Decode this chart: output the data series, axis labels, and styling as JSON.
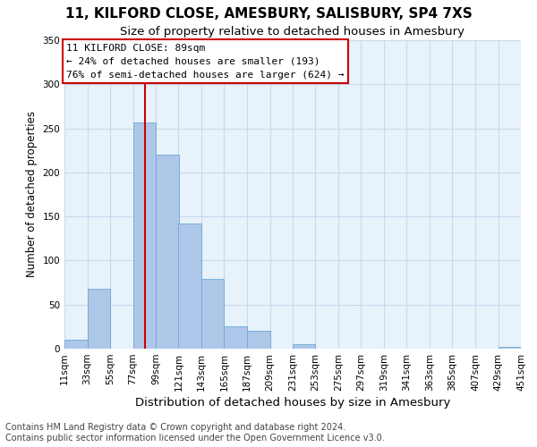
{
  "title": "11, KILFORD CLOSE, AMESBURY, SALISBURY, SP4 7XS",
  "subtitle": "Size of property relative to detached houses in Amesbury",
  "xlabel": "Distribution of detached houses by size in Amesbury",
  "ylabel": "Number of detached properties",
  "bin_edges": [
    11,
    33,
    55,
    77,
    99,
    121,
    143,
    165,
    187,
    209,
    231,
    253,
    275,
    297,
    319,
    341,
    363,
    385,
    407,
    429,
    451
  ],
  "bar_heights": [
    10,
    68,
    0,
    257,
    220,
    142,
    79,
    25,
    20,
    0,
    5,
    0,
    0,
    0,
    0,
    0,
    0,
    0,
    0,
    2
  ],
  "bar_color": "#aec6e8",
  "bar_edgecolor": "#6aaad4",
  "vline_x": 89,
  "vline_color": "#cc0000",
  "annotation_title": "11 KILFORD CLOSE: 89sqm",
  "annotation_line1": "← 24% of detached houses are smaller (193)",
  "annotation_line2": "76% of semi-detached houses are larger (624) →",
  "annotation_box_edgecolor": "#cc0000",
  "ylim": [
    0,
    350
  ],
  "yticks": [
    0,
    50,
    100,
    150,
    200,
    250,
    300,
    350
  ],
  "tick_labels": [
    "11sqm",
    "33sqm",
    "55sqm",
    "77sqm",
    "99sqm",
    "121sqm",
    "143sqm",
    "165sqm",
    "187sqm",
    "209sqm",
    "231sqm",
    "253sqm",
    "275sqm",
    "297sqm",
    "319sqm",
    "341sqm",
    "363sqm",
    "385sqm",
    "407sqm",
    "429sqm",
    "451sqm"
  ],
  "footer_line1": "Contains HM Land Registry data © Crown copyright and database right 2024.",
  "footer_line2": "Contains public sector information licensed under the Open Government Licence v3.0.",
  "title_fontsize": 11,
  "subtitle_fontsize": 9.5,
  "xlabel_fontsize": 9.5,
  "ylabel_fontsize": 8.5,
  "tick_fontsize": 7.5,
  "annotation_fontsize": 8,
  "footer_fontsize": 7,
  "grid_color": "#c8d8ed",
  "background_color": "#e8f2fb"
}
